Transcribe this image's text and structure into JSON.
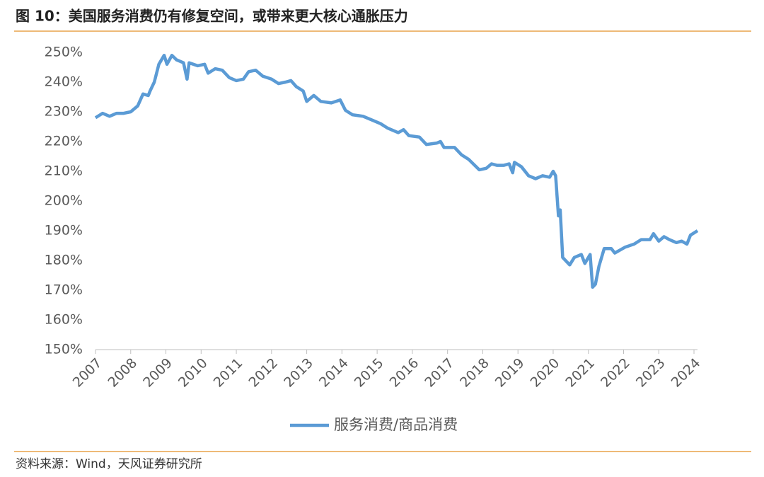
{
  "chart_data": {
    "type": "line",
    "title": "图 10：美国服务消费仍有修复空间，或带来更大核心通胀压力",
    "source": "资料来源：Wind，天风证券研究所",
    "x": [
      2007.0,
      2007.2,
      2007.4,
      2007.6,
      2007.8,
      2008.0,
      2008.2,
      2008.35,
      2008.5,
      2008.55,
      2008.67,
      2008.8,
      2008.95,
      2009.03,
      2009.17,
      2009.3,
      2009.5,
      2009.6,
      2009.66,
      2009.9,
      2010.1,
      2010.2,
      2010.4,
      2010.6,
      2010.8,
      2011.0,
      2011.2,
      2011.35,
      2011.55,
      2011.75,
      2012.0,
      2012.2,
      2012.4,
      2012.55,
      2012.7,
      2012.9,
      2013.0,
      2013.2,
      2013.4,
      2013.7,
      2013.95,
      2014.1,
      2014.3,
      2014.6,
      2014.9,
      2015.1,
      2015.3,
      2015.6,
      2015.75,
      2015.9,
      2016.2,
      2016.4,
      2016.7,
      2016.8,
      2016.9,
      2017.2,
      2017.4,
      2017.6,
      2017.9,
      2018.1,
      2018.25,
      2018.4,
      2018.6,
      2018.75,
      2018.85,
      2018.9,
      2019.1,
      2019.3,
      2019.5,
      2019.7,
      2019.9,
      2020.0,
      2020.07,
      2020.15,
      2020.2,
      2020.27,
      2020.47,
      2020.6,
      2020.8,
      2020.9,
      2021.05,
      2021.12,
      2021.2,
      2021.3,
      2021.45,
      2021.65,
      2021.75,
      2021.9,
      2022.05,
      2022.3,
      2022.5,
      2022.75,
      2022.85,
      2023.0,
      2023.15,
      2023.3,
      2023.5,
      2023.65,
      2023.8,
      2023.9,
      2024.1
    ],
    "series": [
      {
        "name": "服务消费/商品消费",
        "color": "#5b9bd5",
        "values": [
          228,
          229.5,
          228.5,
          229.5,
          229.5,
          230,
          232,
          236,
          235.5,
          237,
          240,
          246,
          249,
          246,
          249,
          247.5,
          246.5,
          241,
          246.5,
          245.5,
          246,
          243,
          244.5,
          244,
          241.5,
          240.5,
          241,
          243.5,
          244,
          242,
          241,
          239.5,
          240,
          240.5,
          238.5,
          237,
          233.5,
          235.5,
          233.5,
          233,
          234,
          230.5,
          229,
          228.5,
          227,
          226,
          224.5,
          223,
          224,
          222,
          221.5,
          219,
          219.5,
          220,
          218,
          218,
          215.5,
          214,
          210.5,
          211,
          212.5,
          212,
          212,
          212.5,
          209.5,
          213,
          211.5,
          208.5,
          207.5,
          208.5,
          208,
          210,
          208.5,
          195,
          197,
          181,
          178.5,
          181,
          182,
          179,
          182,
          171,
          172,
          178,
          184,
          184,
          182.5,
          183.5,
          184.5,
          185.5,
          187,
          187,
          189,
          186.5,
          188,
          187,
          186,
          186.5,
          185.5,
          188.5,
          190
        ]
      }
    ],
    "xlim": [
      2007,
      2024.1
    ],
    "xticks": [
      2007,
      2008,
      2009,
      2010,
      2011,
      2012,
      2013,
      2014,
      2015,
      2016,
      2017,
      2018,
      2019,
      2020,
      2021,
      2022,
      2023,
      2024
    ],
    "ylim": [
      150,
      250
    ],
    "yticks": [
      {
        "value": 150,
        "label": "150%"
      },
      {
        "value": 160,
        "label": "160%"
      },
      {
        "value": 170,
        "label": "170%"
      },
      {
        "value": 180,
        "label": "180%"
      },
      {
        "value": 190,
        "label": "190%"
      },
      {
        "value": 200,
        "label": "200%"
      },
      {
        "value": 210,
        "label": "210%"
      },
      {
        "value": 220,
        "label": "220%"
      },
      {
        "value": 230,
        "label": "230%"
      },
      {
        "value": 240,
        "label": "240%"
      },
      {
        "value": 250,
        "label": "250%"
      }
    ],
    "legend": "bottom"
  }
}
